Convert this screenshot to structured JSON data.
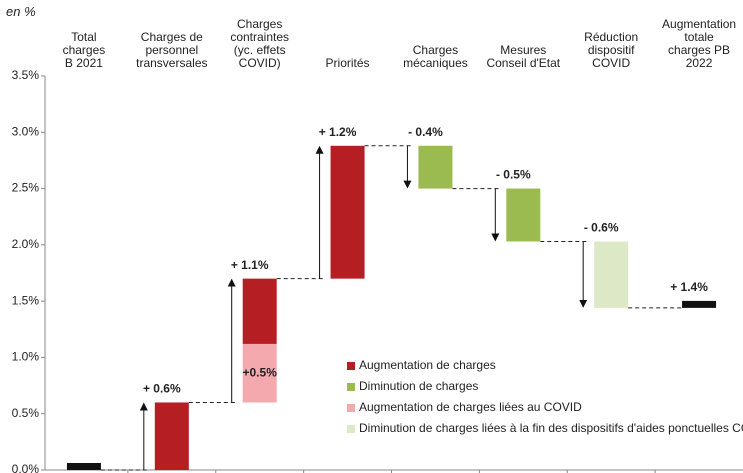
{
  "chart_data": {
    "type": "waterfall",
    "unit_label": "en %",
    "categories": [
      "Total\ncharges\nB 2021",
      "Charges de\npersonnel\ntransversales",
      "Charges\ncontraintes\n(yc. effets\nCOVID)",
      "Priorités",
      "Charges\nmécaniques",
      "Mesures\nConseil d'Etat",
      "Réduction\ndispositif\nCOVID",
      "Augmentation\ntotale\ncharges PB\n2022"
    ],
    "totals": [
      0,
      null,
      null,
      null,
      null,
      null,
      null,
      1.44
    ],
    "series": [
      {
        "name": "Augmentation de charges",
        "color": "#b51f24",
        "values": [
          null,
          0.6,
          0.58,
          1.18,
          null,
          null,
          null,
          null
        ]
      },
      {
        "name": "Diminution de charges",
        "color": "#9bba4f",
        "values": [
          null,
          null,
          null,
          null,
          -0.38,
          -0.47,
          null,
          null
        ]
      },
      {
        "name": "Augmentation de charges liées au COVID",
        "color": "#f4a9ae",
        "values": [
          null,
          null,
          0.52,
          null,
          null,
          null,
          null,
          null
        ],
        "value_labels": [
          null,
          null,
          "+0.5%",
          null,
          null,
          null,
          null,
          null
        ]
      },
      {
        "name": "Diminution de charges liées à la fin des dispositifs d'aides ponctuelles COVID",
        "color": "#dde8c6",
        "values": [
          null,
          null,
          null,
          null,
          null,
          null,
          -0.59,
          null
        ]
      }
    ],
    "step_labels": [
      null,
      "+ 0.6%",
      "+ 1.1%",
      "+ 1.2%",
      "- 0.4%",
      "- 0.5%",
      "- 0.6%",
      "+ 1.4%"
    ],
    "total_color": "#111111",
    "ylim": [
      0,
      3.5
    ],
    "yticks": [
      {
        "value": 0,
        "label": "0.0%"
      },
      {
        "value": 0.5,
        "label": "0.5%"
      },
      {
        "value": 1,
        "label": "1.0%"
      },
      {
        "value": 1.5,
        "label": "1.5%"
      },
      {
        "value": 2,
        "label": "2.0%"
      },
      {
        "value": 2.5,
        "label": "2.5%"
      },
      {
        "value": 3,
        "label": "3.0%"
      },
      {
        "value": 3.5,
        "label": "3.5%"
      }
    ],
    "legend_position": "lower right"
  }
}
